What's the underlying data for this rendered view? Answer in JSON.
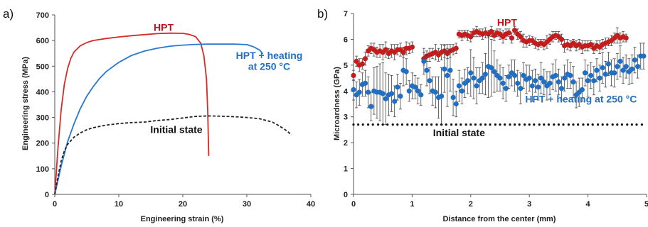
{
  "chart_data": [
    {
      "type": "line",
      "panel_label": "a)",
      "xlabel": "Engineering strain (%)",
      "ylabel": "Engineering stress (MPa)",
      "xlim": [
        0,
        40
      ],
      "ylim": [
        0,
        700
      ],
      "xticks": [
        0,
        10,
        20,
        30,
        40
      ],
      "yticks": [
        0,
        100,
        200,
        300,
        400,
        500,
        600,
        700
      ],
      "grid": false,
      "annotations": [
        {
          "text": "HPT",
          "color": "#c0141c",
          "x": 17,
          "y": 638
        },
        {
          "text": "HPT + heating",
          "color": "#1f6fc5",
          "x": 33.5,
          "y": 528
        },
        {
          "text": "at 250 °C",
          "color": "#1f6fc5",
          "x": 33.5,
          "y": 486
        },
        {
          "text": "Initial state",
          "color": "#111111",
          "x": 19,
          "y": 240
        }
      ],
      "series": [
        {
          "key": "hpt",
          "color": "#d42a2a",
          "style": "solid",
          "x": [
            0,
            0.5,
            1,
            1.5,
            2,
            2.5,
            3,
            4,
            5,
            6,
            8,
            10,
            12,
            14,
            16,
            18,
            20,
            21,
            22,
            22.8,
            23.3,
            23.7,
            23.9,
            24.0,
            24.05
          ],
          "y": [
            0,
            180,
            330,
            430,
            490,
            530,
            555,
            580,
            592,
            600,
            608,
            614,
            619,
            623,
            627,
            629,
            628,
            624,
            615,
            590,
            540,
            450,
            320,
            200,
            150
          ]
        },
        {
          "key": "hpt_heating",
          "color": "#2878cf",
          "style": "solid",
          "x": [
            0,
            1,
            2,
            3,
            4,
            5,
            6,
            7,
            8,
            10,
            12,
            14,
            16,
            18,
            20,
            22,
            24,
            26,
            28,
            30,
            31,
            32,
            32.5
          ],
          "y": [
            0,
            110,
            205,
            275,
            335,
            383,
            420,
            452,
            478,
            515,
            542,
            559,
            570,
            578,
            582,
            585,
            586,
            586,
            586,
            584,
            576,
            563,
            548
          ]
        },
        {
          "key": "initial",
          "color": "#222222",
          "style": "dashed",
          "x": [
            0,
            0.5,
            1,
            1.5,
            2,
            3,
            4,
            5,
            6,
            8,
            10,
            12,
            14,
            16,
            18,
            20,
            22,
            24,
            26,
            28,
            30,
            32,
            34,
            35,
            36,
            37
          ],
          "y": [
            0,
            70,
            130,
            170,
            195,
            223,
            240,
            252,
            260,
            270,
            276,
            280,
            282,
            288,
            292,
            298,
            304,
            306,
            305,
            303,
            300,
            295,
            282,
            268,
            252,
            232
          ]
        }
      ]
    },
    {
      "type": "scatter",
      "panel_label": "b)",
      "xlabel": "Distance from the center (mm)",
      "ylabel": "Microardness (GPa)",
      "xlim": [
        0,
        5
      ],
      "ylim": [
        0,
        7
      ],
      "xticks": [
        0,
        1,
        2,
        3,
        4,
        5
      ],
      "yticks": [
        0,
        1,
        2,
        3,
        4,
        5,
        6,
        7
      ],
      "grid": false,
      "annotations": [
        {
          "text": "HPT",
          "color": "#c0141c",
          "x": 2.62,
          "y": 6.52
        },
        {
          "text": "HPT + heating at 250 °C",
          "color": "#1f6fc5",
          "x": 2.93,
          "y": 3.55
        },
        {
          "text": "Initial state",
          "color": "#111111",
          "x": 1.8,
          "y": 2.25
        }
      ],
      "series": [
        {
          "key": "hpt",
          "color": "#c61b1b",
          "marker": "circle",
          "x": [
            0.0,
            0.05,
            0.1,
            0.15,
            0.2,
            0.25,
            0.3,
            0.35,
            0.4,
            0.45,
            0.5,
            0.55,
            0.6,
            0.65,
            0.7,
            0.75,
            0.8,
            0.85,
            0.9,
            0.95,
            1.0,
            1.2,
            1.25,
            1.3,
            1.35,
            1.4,
            1.45,
            1.5,
            1.55,
            1.6,
            1.65,
            1.7,
            1.75,
            1.8,
            1.85,
            1.9,
            1.95,
            2.0,
            2.05,
            2.1,
            2.15,
            2.2,
            2.25,
            2.3,
            2.35,
            2.4,
            2.45,
            2.5,
            2.55,
            2.6,
            2.65,
            2.7,
            2.75,
            2.8,
            2.85,
            2.9,
            2.95,
            3.0,
            3.05,
            3.1,
            3.15,
            3.2,
            3.25,
            3.3,
            3.35,
            3.4,
            3.45,
            3.5,
            3.55,
            3.6,
            3.65,
            3.7,
            3.75,
            3.8,
            3.85,
            3.9,
            3.95,
            4.0,
            4.05,
            4.1,
            4.15,
            4.2,
            4.25,
            4.3,
            4.35,
            4.4,
            4.45,
            4.5,
            4.55,
            4.6,
            4.65
          ],
          "y": [
            4.6,
            5.15,
            5.0,
            5.05,
            5.25,
            5.55,
            5.65,
            5.6,
            5.5,
            5.55,
            5.5,
            5.6,
            5.45,
            5.55,
            5.5,
            5.6,
            5.6,
            5.5,
            5.65,
            5.65,
            5.7,
            5.25,
            5.35,
            5.4,
            5.45,
            5.5,
            5.4,
            5.5,
            5.55,
            5.45,
            5.55,
            5.6,
            5.65,
            6.2,
            6.15,
            6.2,
            6.15,
            6.1,
            6.25,
            6.3,
            6.25,
            6.2,
            6.25,
            6.2,
            6.3,
            6.15,
            6.25,
            6.2,
            6.1,
            6.2,
            6.25,
            6.05,
            6.35,
            6.2,
            6.1,
            5.95,
            5.9,
            5.95,
            5.95,
            5.85,
            5.8,
            5.85,
            5.8,
            5.9,
            6.0,
            6.1,
            6.15,
            6.1,
            6.0,
            5.75,
            5.8,
            5.75,
            5.85,
            5.75,
            5.8,
            5.7,
            5.75,
            5.75,
            5.8,
            5.65,
            5.75,
            5.7,
            5.8,
            5.85,
            5.9,
            5.95,
            6.05,
            6.15,
            6.05,
            6.1,
            6.05
          ],
          "err": [
            0.2,
            0.2,
            0.25,
            0.2,
            0.25,
            0.2,
            0.2,
            0.25,
            0.2,
            0.25,
            0.3,
            0.3,
            0.2,
            0.25,
            0.3,
            0.2,
            0.25,
            0.2,
            0.25,
            0.2,
            0.2,
            0.25,
            0.2,
            0.25,
            0.2,
            0.3,
            0.25,
            0.3,
            0.25,
            0.2,
            0.25,
            0.2,
            0.2,
            0.15,
            0.2,
            0.15,
            0.2,
            0.2,
            0.15,
            0.2,
            0.15,
            0.2,
            0.2,
            0.15,
            0.2,
            0.2,
            0.15,
            0.2,
            0.25,
            0.2,
            0.15,
            0.2,
            0.15,
            0.2,
            0.2,
            0.25,
            0.2,
            0.2,
            0.15,
            0.2,
            0.2,
            0.15,
            0.2,
            0.25,
            0.2,
            0.2,
            0.15,
            0.2,
            0.2,
            0.25,
            0.2,
            0.2,
            0.15,
            0.2,
            0.2,
            0.25,
            0.2,
            0.2,
            0.15,
            0.2,
            0.2,
            0.25,
            0.2,
            0.2,
            0.15,
            0.2,
            0.2,
            0.3,
            0.2,
            0.2,
            0.15
          ]
        },
        {
          "key": "hpt_heating",
          "color": "#1f6fc5",
          "marker": "circle",
          "x": [
            0.0,
            0.05,
            0.1,
            0.15,
            0.2,
            0.25,
            0.3,
            0.35,
            0.4,
            0.45,
            0.5,
            0.55,
            0.6,
            0.65,
            0.7,
            0.75,
            0.8,
            0.85,
            0.9,
            0.95,
            1.0,
            1.05,
            1.1,
            1.15,
            1.2,
            1.25,
            1.3,
            1.35,
            1.4,
            1.45,
            1.5,
            1.55,
            1.6,
            1.65,
            1.7,
            1.75,
            1.8,
            1.85,
            1.9,
            1.95,
            2.0,
            2.05,
            2.1,
            2.15,
            2.2,
            2.25,
            2.3,
            2.35,
            2.4,
            2.45,
            2.5,
            2.55,
            2.6,
            2.65,
            2.7,
            2.75,
            2.8,
            2.85,
            2.9,
            2.95,
            3.0,
            3.05,
            3.1,
            3.15,
            3.2,
            3.25,
            3.3,
            3.35,
            3.4,
            3.45,
            3.5,
            3.55,
            3.6,
            3.65,
            3.7,
            3.75,
            3.8,
            3.85,
            3.9,
            3.95,
            4.0,
            4.05,
            4.1,
            4.15,
            4.2,
            4.25,
            4.3,
            4.35,
            4.4,
            4.45,
            4.5,
            4.55,
            4.6,
            4.65,
            4.7,
            4.75,
            4.8,
            4.85,
            4.9,
            4.95
          ],
          "y": [
            4.05,
            3.85,
            3.95,
            4.25,
            4.3,
            3.95,
            3.4,
            4.0,
            3.95,
            3.95,
            3.9,
            3.7,
            3.85,
            3.9,
            3.6,
            4.15,
            3.8,
            4.8,
            4.75,
            4.0,
            4.2,
            4.15,
            4.0,
            3.85,
            5.15,
            4.8,
            4.4,
            4.0,
            3.95,
            3.75,
            3.8,
            4.85,
            4.6,
            4.8,
            3.75,
            3.5,
            4.2,
            4.0,
            4.3,
            4.4,
            4.7,
            4.5,
            4.2,
            4.4,
            4.5,
            4.65,
            4.95,
            4.9,
            4.75,
            4.6,
            4.5,
            4.3,
            4.1,
            4.55,
            4.7,
            4.6,
            4.3,
            4.1,
            4.6,
            4.45,
            4.5,
            4.2,
            4.4,
            4.15,
            4.5,
            4.35,
            4.2,
            4.3,
            4.55,
            4.6,
            4.35,
            4.1,
            4.5,
            4.65,
            4.6,
            4.35,
            3.85,
            3.95,
            4.05,
            4.7,
            4.4,
            4.6,
            4.4,
            4.8,
            4.5,
            4.9,
            4.65,
            5.05,
            4.7,
            4.7,
            4.95,
            5.15,
            4.8,
            4.95,
            4.75,
            4.85,
            5.2,
            4.95,
            5.35,
            5.35
          ],
          "err": [
            0.4,
            0.5,
            0.5,
            0.45,
            0.5,
            0.6,
            0.55,
            0.9,
            1.0,
            1.1,
            1.2,
            1.0,
            0.8,
            0.7,
            0.6,
            0.5,
            0.5,
            0.6,
            0.5,
            0.4,
            0.5,
            0.45,
            0.5,
            0.4,
            0.5,
            0.6,
            0.5,
            0.55,
            0.6,
            0.8,
            1.1,
            0.9,
            1.2,
            0.8,
            0.7,
            0.5,
            0.6,
            0.5,
            0.55,
            0.5,
            0.9,
            0.8,
            0.7,
            0.5,
            0.6,
            0.8,
            1.2,
            1.1,
            0.8,
            0.6,
            0.5,
            0.6,
            0.5,
            0.45,
            0.5,
            0.6,
            0.5,
            0.6,
            0.5,
            0.55,
            0.5,
            0.6,
            0.45,
            0.5,
            0.6,
            0.5,
            0.55,
            0.45,
            0.5,
            0.6,
            0.5,
            0.45,
            0.5,
            0.55,
            0.5,
            0.6,
            0.5,
            0.55,
            0.45,
            0.5,
            0.6,
            0.5,
            0.55,
            0.45,
            0.5,
            0.6,
            0.5,
            0.45,
            0.5,
            0.55,
            0.5,
            0.6,
            0.5,
            0.45,
            0.5,
            0.55,
            0.5,
            0.45,
            0.5,
            0.5
          ]
        },
        {
          "key": "initial",
          "color": "#111111",
          "marker": "dot",
          "x": [
            0.0,
            0.08,
            0.16,
            0.25,
            0.33,
            0.42,
            0.5,
            0.58,
            0.67,
            0.75,
            0.83,
            0.92,
            1.0,
            1.08,
            1.17,
            1.25,
            1.33,
            1.42,
            1.5,
            1.58,
            1.67,
            1.75,
            1.83,
            1.92,
            2.0,
            2.08,
            2.17,
            2.25,
            2.33,
            2.42,
            2.5,
            2.58,
            2.67,
            2.75,
            2.83,
            2.92,
            3.0,
            3.08,
            3.17,
            3.25,
            3.33,
            3.42,
            3.5,
            3.58,
            3.67,
            3.75,
            3.83,
            3.92,
            4.0,
            4.08,
            4.17,
            4.25,
            4.33,
            4.42,
            4.5,
            4.58,
            4.67,
            4.75,
            4.83,
            4.92
          ],
          "y": [
            2.7,
            2.7,
            2.7,
            2.7,
            2.7,
            2.7,
            2.7,
            2.7,
            2.7,
            2.7,
            2.7,
            2.7,
            2.7,
            2.7,
            2.7,
            2.7,
            2.7,
            2.7,
            2.7,
            2.7,
            2.7,
            2.7,
            2.7,
            2.7,
            2.7,
            2.7,
            2.7,
            2.7,
            2.7,
            2.7,
            2.7,
            2.7,
            2.7,
            2.7,
            2.7,
            2.7,
            2.7,
            2.7,
            2.7,
            2.7,
            2.7,
            2.7,
            2.7,
            2.7,
            2.7,
            2.7,
            2.7,
            2.7,
            2.7,
            2.7,
            2.7,
            2.7,
            2.7,
            2.7,
            2.7,
            2.7,
            2.7,
            2.7,
            2.7,
            2.7
          ]
        }
      ]
    }
  ]
}
